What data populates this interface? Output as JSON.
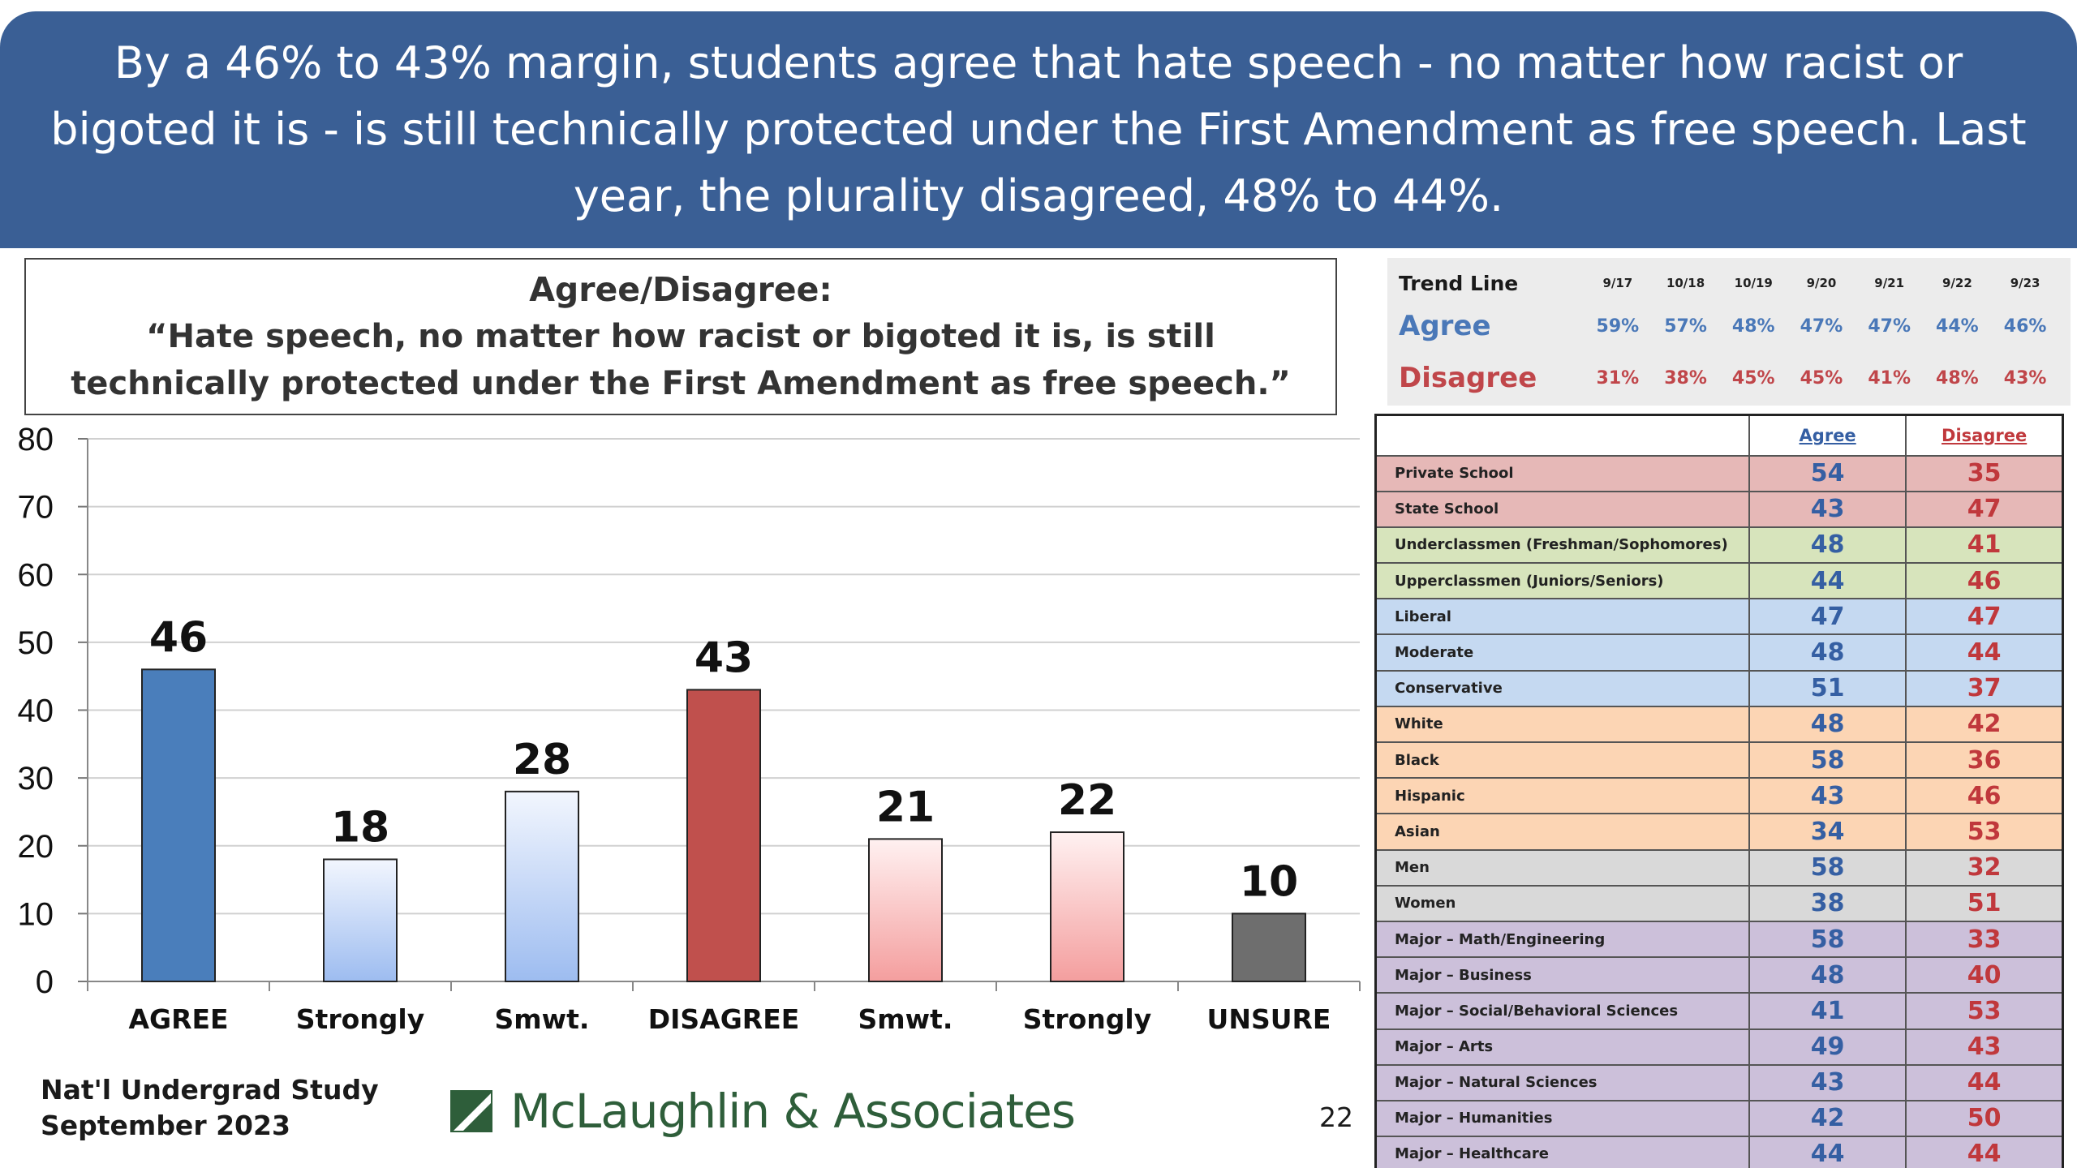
{
  "header": {
    "text": "By a 46% to 43% margin, students agree that hate speech - no matter how racist or bigoted it is - is still technically protected under the First Amendment as free speech. Last year, the plurality disagreed, 48% to 44%."
  },
  "question": {
    "label": "Agree/Disagree:",
    "text": "“Hate speech, no matter how racist or bigoted it is, is still technically protected under the First Amendment as free speech.”"
  },
  "colors": {
    "banner": "#3a5f95",
    "agree_bar": "#4a7ebb",
    "agree_light": "#aac4f2",
    "disagree_bar": "#c0504d",
    "disagree_light": "#f5a3a3",
    "unsure_bar": "#6e6e6e"
  },
  "chart_data": {
    "type": "bar",
    "categories": [
      "AGREE",
      "Strongly",
      "Smwt.",
      "DISAGREE",
      "Smwt.",
      "Strongly",
      "UNSURE"
    ],
    "values": [
      46,
      18,
      28,
      43,
      21,
      22,
      10
    ],
    "ylim": [
      0,
      80
    ],
    "yticks": [
      0,
      10,
      20,
      30,
      40,
      50,
      60,
      70,
      80
    ],
    "grid": true,
    "xlabel": "",
    "ylabel": ""
  },
  "trend": {
    "title": "Trend Line",
    "dates": [
      "9/17",
      "10/18",
      "10/19",
      "9/20",
      "9/21",
      "9/22",
      "9/23"
    ],
    "rows": [
      {
        "label": "Agree",
        "values": [
          "59%",
          "57%",
          "48%",
          "47%",
          "47%",
          "44%",
          "46%"
        ]
      },
      {
        "label": "Disagree",
        "values": [
          "31%",
          "38%",
          "45%",
          "45%",
          "41%",
          "48%",
          "43%"
        ]
      }
    ]
  },
  "demographics": {
    "headers": [
      "",
      "Agree",
      "Disagree"
    ],
    "rows": [
      {
        "label": "Private School",
        "agree": "54",
        "disagree": "35",
        "color": "#e6b8b7"
      },
      {
        "label": "State School",
        "agree": "43",
        "disagree": "47",
        "color": "#e6b8b7"
      },
      {
        "label": "Underclassmen (Freshman/Sophomores)",
        "agree": "48",
        "disagree": "41",
        "color": "#d7e4bc"
      },
      {
        "label": "Upperclassmen (Juniors/Seniors)",
        "agree": "44",
        "disagree": "46",
        "color": "#d7e4bc"
      },
      {
        "label": "Liberal",
        "agree": "47",
        "disagree": "47",
        "color": "#c5d9f1"
      },
      {
        "label": "Moderate",
        "agree": "48",
        "disagree": "44",
        "color": "#c5d9f1"
      },
      {
        "label": "Conservative",
        "agree": "51",
        "disagree": "37",
        "color": "#c5d9f1"
      },
      {
        "label": "White",
        "agree": "48",
        "disagree": "42",
        "color": "#fcd5b4"
      },
      {
        "label": "Black",
        "agree": "58",
        "disagree": "36",
        "color": "#fcd5b4"
      },
      {
        "label": "Hispanic",
        "agree": "43",
        "disagree": "46",
        "color": "#fcd5b4"
      },
      {
        "label": "Asian",
        "agree": "34",
        "disagree": "53",
        "color": "#fcd5b4"
      },
      {
        "label": "Men",
        "agree": "58",
        "disagree": "32",
        "color": "#d9d9d9"
      },
      {
        "label": "Women",
        "agree": "38",
        "disagree": "51",
        "color": "#d9d9d9"
      },
      {
        "label": "Major – Math/Engineering",
        "agree": "58",
        "disagree": "33",
        "color": "#ccc0da"
      },
      {
        "label": "Major – Business",
        "agree": "48",
        "disagree": "40",
        "color": "#ccc0da"
      },
      {
        "label": "Major – Social/Behavioral Sciences",
        "agree": "41",
        "disagree": "53",
        "color": "#ccc0da"
      },
      {
        "label": "Major – Arts",
        "agree": "49",
        "disagree": "43",
        "color": "#ccc0da"
      },
      {
        "label": "Major – Natural Sciences",
        "agree": "43",
        "disagree": "44",
        "color": "#ccc0da"
      },
      {
        "label": "Major – Humanities",
        "agree": "42",
        "disagree": "50",
        "color": "#ccc0da"
      },
      {
        "label": "Major – Healthcare",
        "agree": "44",
        "disagree": "44",
        "color": "#ccc0da"
      }
    ]
  },
  "footer": {
    "study_line1": "Nat'l Undergrad Study",
    "study_line2": "September 2023",
    "logo_text": "McLaughlin & Associates",
    "page_number": "22"
  }
}
